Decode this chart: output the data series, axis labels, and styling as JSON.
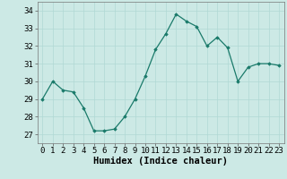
{
  "x": [
    0,
    1,
    2,
    3,
    4,
    5,
    6,
    7,
    8,
    9,
    10,
    11,
    12,
    13,
    14,
    15,
    16,
    17,
    18,
    19,
    20,
    21,
    22,
    23
  ],
  "y": [
    29,
    30,
    29.5,
    29.4,
    28.5,
    27.2,
    27.2,
    27.3,
    28,
    29,
    30.3,
    31.8,
    32.7,
    33.8,
    33.4,
    33.1,
    32,
    32.5,
    31.9,
    30,
    30.8,
    31,
    31,
    30.9
  ],
  "line_color": "#1a7a6a",
  "marker": "D",
  "marker_size": 1.8,
  "bg_color": "#cce9e5",
  "grid_color": "#b0d8d4",
  "xlabel": "Humidex (Indice chaleur)",
  "ylim": [
    26.5,
    34.5
  ],
  "xlim": [
    -0.5,
    23.5
  ],
  "yticks": [
    27,
    28,
    29,
    30,
    31,
    32,
    33,
    34
  ],
  "xticks": [
    0,
    1,
    2,
    3,
    4,
    5,
    6,
    7,
    8,
    9,
    10,
    11,
    12,
    13,
    14,
    15,
    16,
    17,
    18,
    19,
    20,
    21,
    22,
    23
  ],
  "xlabel_fontsize": 7.5,
  "tick_fontsize": 6.5
}
